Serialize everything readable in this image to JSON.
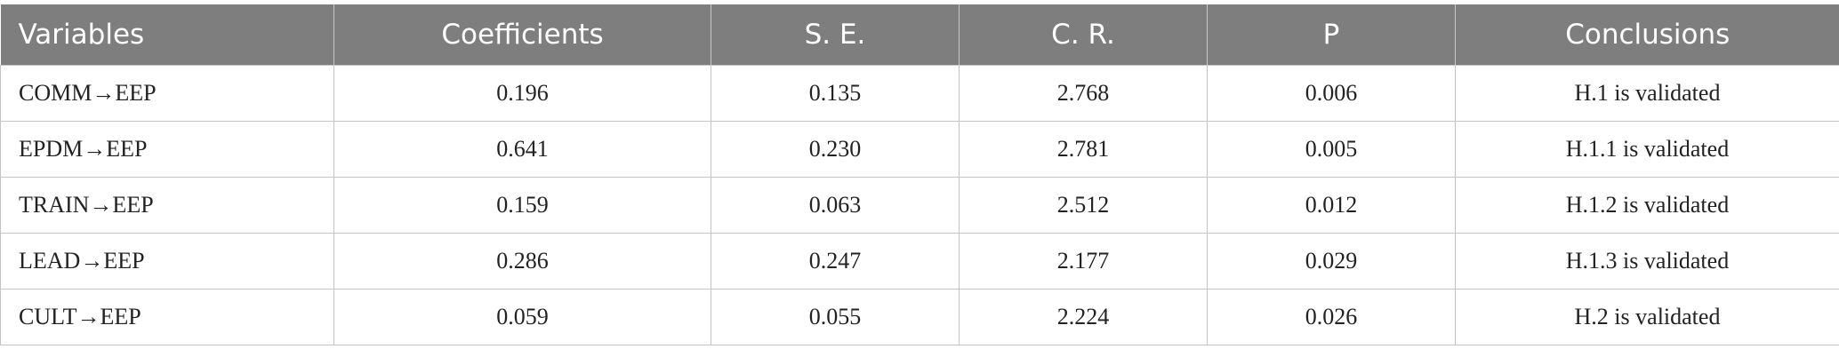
{
  "table": {
    "headers": [
      "Variables",
      "Coefficients",
      "S. E.",
      "C. R.",
      "P",
      "Conclusions"
    ],
    "rows": [
      [
        "COMM→EEP",
        "0.196",
        "0.135",
        "2.768",
        "0.006",
        "H.1 is validated"
      ],
      [
        "EPDM→EEP",
        "0.641",
        "0.230",
        "2.781",
        "0.005",
        "H.1.1 is validated"
      ],
      [
        "TRAIN→EEP",
        "0.159",
        "0.063",
        "2.512",
        "0.012",
        "H.1.2 is validated"
      ],
      [
        "LEAD→EEP",
        "0.286",
        "0.247",
        "2.177",
        "0.029",
        "H.1.3 is validated"
      ],
      [
        "CULT→EEP",
        "0.059",
        "0.055",
        "2.224",
        "0.026",
        "H.2 is validated"
      ]
    ]
  },
  "colors": {
    "header_bg": "#7d7e7d",
    "header_text": "#ffffff",
    "grid": "#c4c4c4"
  }
}
